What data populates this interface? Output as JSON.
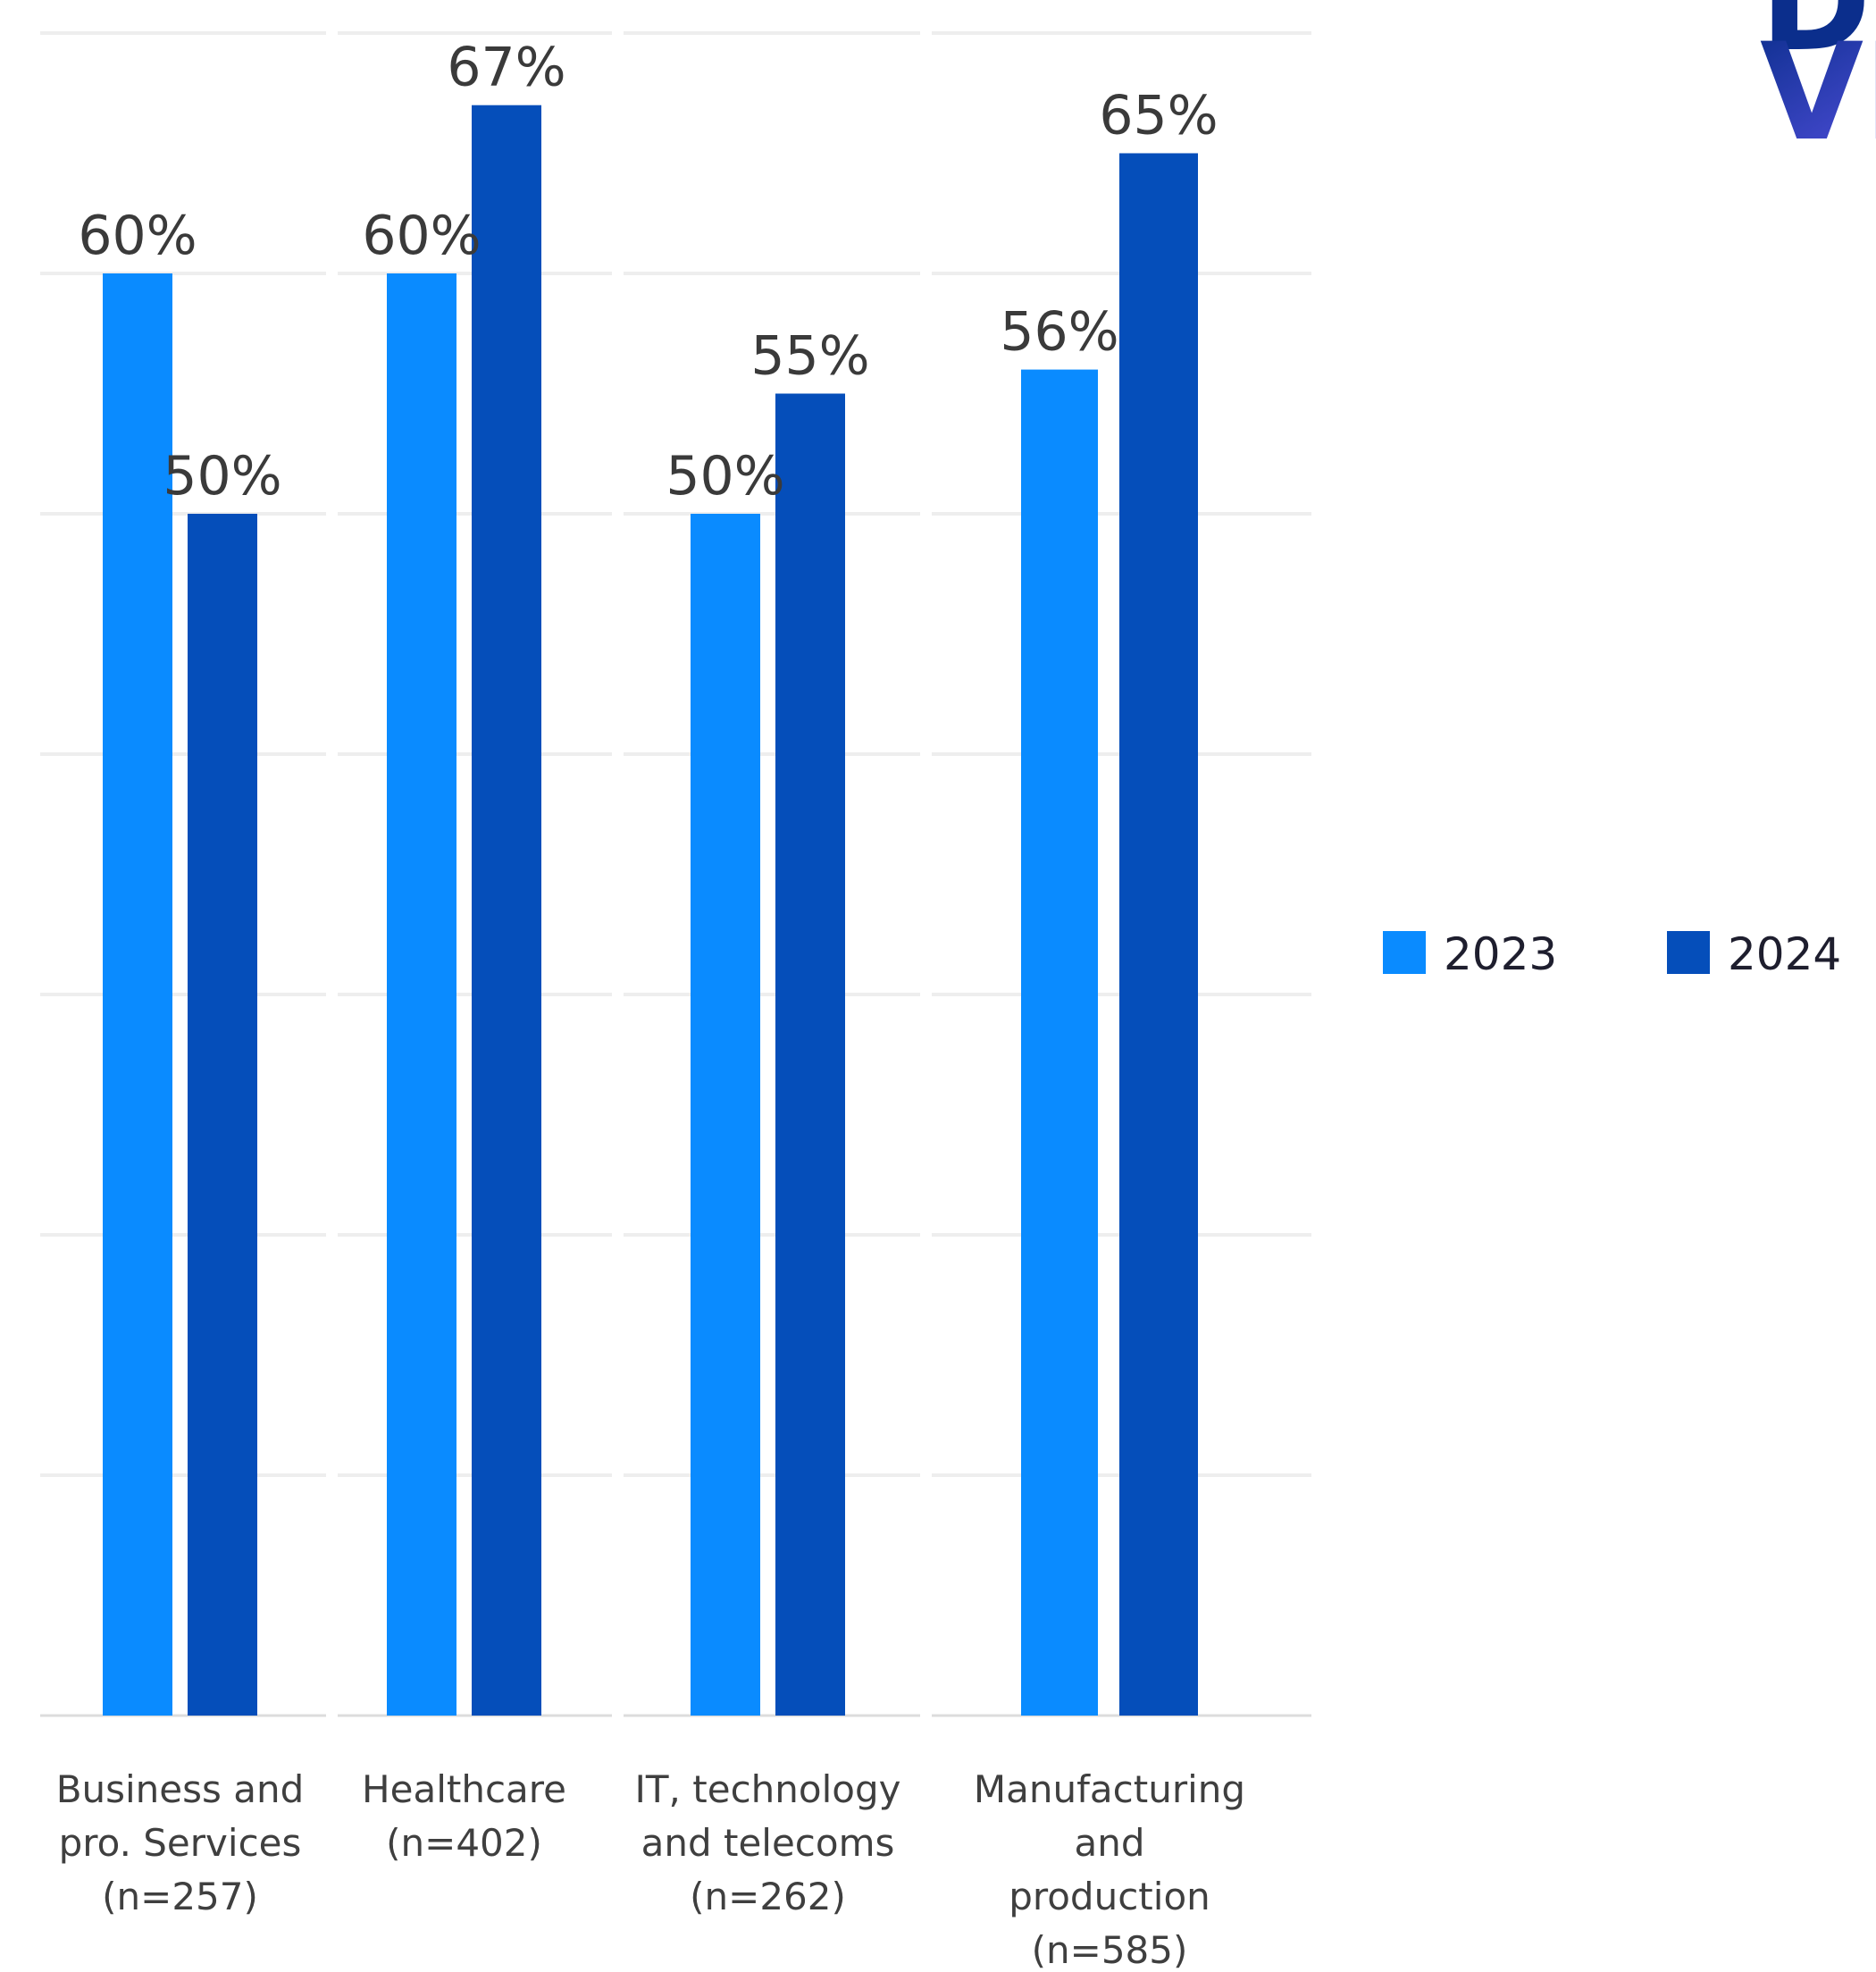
{
  "chart_data": {
    "type": "bar",
    "categories": [
      [
        "Business and",
        "pro. Services",
        "(n=257)"
      ],
      [
        "Healthcare",
        "(n=402)"
      ],
      [
        "IT, technology",
        "and telecoms",
        "(n=262)"
      ],
      [
        "Manufacturing",
        "and",
        "production",
        "(n=585)"
      ]
    ],
    "series": [
      {
        "name": "2023",
        "values": [
          60,
          60,
          50,
          56
        ],
        "color": "#0A8BFF"
      },
      {
        "name": "2024",
        "values": [
          50,
          67,
          55,
          65
        ],
        "color": "#054EBA"
      }
    ],
    "value_suffix": "%",
    "ylim": [
      0,
      70
    ],
    "grid": true,
    "legend_placement": "right"
  },
  "logo": {
    "line1": "DIG",
    "line2": "VIS",
    "colors": [
      "#0B2E8C",
      "#6A5AF9"
    ]
  }
}
